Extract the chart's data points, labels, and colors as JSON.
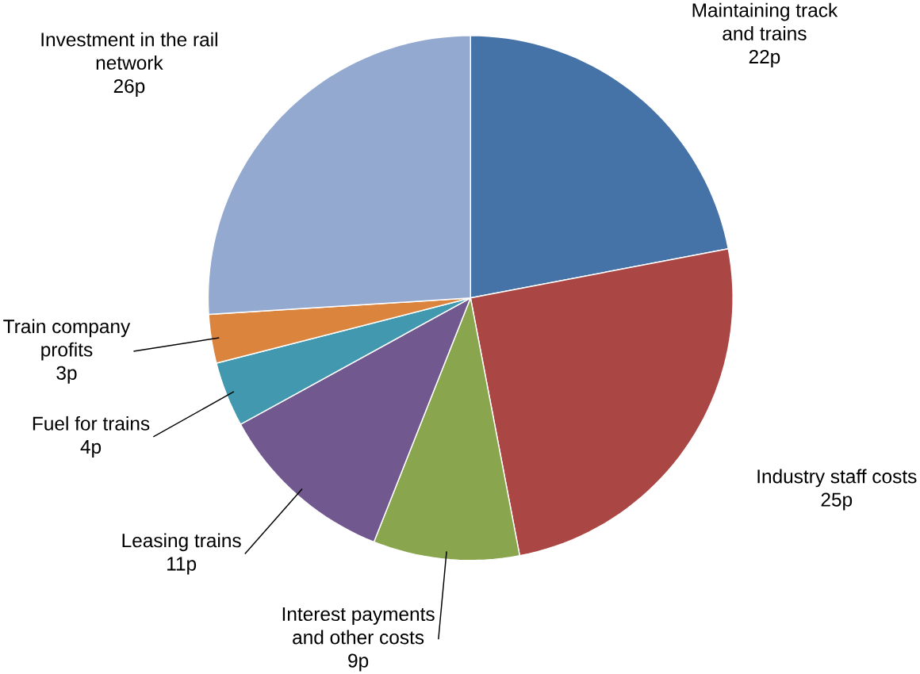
{
  "chart_data": {
    "type": "pie",
    "categories": [
      "Maintaining track and trains",
      "Industry staff costs",
      "Interest payments and other costs",
      "Leasing trains",
      "Fuel for trains",
      "Train company profits",
      "Investment in the rail network"
    ],
    "values": [
      22,
      25,
      9,
      11,
      4,
      3,
      26
    ],
    "value_labels": [
      "22p",
      "25p",
      "9p",
      "11p",
      "4p",
      "3p",
      "26p"
    ],
    "colors": [
      "#4572a7",
      "#aa4643",
      "#89a54e",
      "#71588f",
      "#4198af",
      "#db843d",
      "#93a9cf"
    ]
  }
}
